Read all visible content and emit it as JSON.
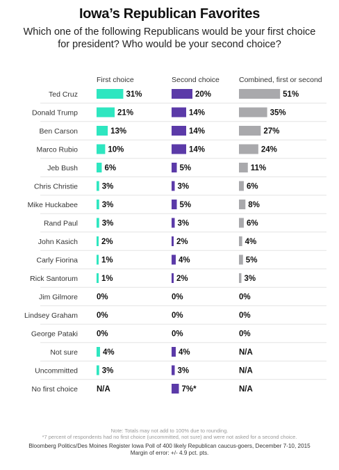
{
  "chart_data": {
    "type": "bar",
    "title": "Iowa’s Republican Favorites",
    "subtitle": "Which one of the following Republicans would be your first choice for president? Who would be your second choice?",
    "colors": [
      "#2ee6c0",
      "#5b3aa8",
      "#a9a9ac"
    ],
    "series": [
      {
        "name": "First choice",
        "values": [
          31,
          21,
          13,
          10,
          6,
          3,
          3,
          3,
          2,
          1,
          1,
          0,
          0,
          0,
          4,
          3,
          null
        ],
        "labels": [
          "31%",
          "21%",
          "13%",
          "10%",
          "6%",
          "3%",
          "3%",
          "3%",
          "2%",
          "1%",
          "1%",
          "0%",
          "0%",
          "0%",
          "4%",
          "3%",
          "N/A"
        ]
      },
      {
        "name": "Second choice",
        "values": [
          20,
          14,
          14,
          14,
          5,
          3,
          5,
          3,
          2,
          4,
          2,
          0,
          0,
          0,
          4,
          3,
          7
        ],
        "labels": [
          "20%",
          "14%",
          "14%",
          "14%",
          "5%",
          "3%",
          "5%",
          "3%",
          "2%",
          "4%",
          "2%",
          "0%",
          "0%",
          "0%",
          "4%",
          "3%",
          "7%*"
        ]
      },
      {
        "name": "Combined, first or second",
        "values": [
          51,
          35,
          27,
          24,
          11,
          6,
          8,
          6,
          4,
          5,
          3,
          0,
          0,
          0,
          null,
          null,
          null
        ],
        "labels": [
          "51%",
          "35%",
          "27%",
          "24%",
          "11%",
          "6%",
          "8%",
          "6%",
          "4%",
          "5%",
          "3%",
          "0%",
          "0%",
          "0%",
          "N/A",
          "N/A",
          "N/A"
        ]
      }
    ],
    "categories": [
      "Ted Cruz",
      "Donald Trump",
      "Ben Carson",
      "Marco Rubio",
      "Jeb Bush",
      "Chris Christie",
      "Mike Huckabee",
      "Rand Paul",
      "John Kasich",
      "Carly Fiorina",
      "Rick Santorum",
      "Jim Gilmore",
      "Lindsey Graham",
      "George Pataki",
      "Not sure",
      "Uncommitted",
      "No first choice"
    ],
    "notes": [
      "Note: Totals may not add to 100% due to rounding.",
      "*7 percent of respondents had no first choice (uncommitted, not sure) and were not asked for a second choice."
    ],
    "source": "Bloomberg Politics/Des Moines Register Iowa Poll of 400 likely Republican caucus-goers, December 7-10, 2015",
    "margin": "Margin of error: +/- 4.9 pct. pts."
  }
}
